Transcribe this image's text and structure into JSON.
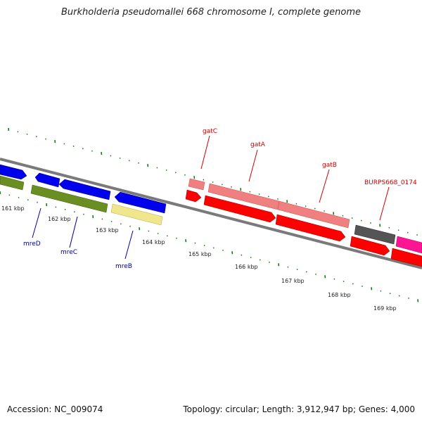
{
  "title": "Burkholderia pseudomallei 668 chromosome I, complete genome",
  "footer": {
    "accession": "Accession: NC_009074",
    "summary": "Topology: circular; Length: 3,912,947 bp; Genes: 4,000"
  },
  "colors": {
    "blue": "#0000ee",
    "olive": "#6b8e23",
    "khaki": "#f0e68c",
    "salmon": "#f08080",
    "red": "#ff0000",
    "gray": "#555555",
    "magenta": "#ff1493",
    "tick": "#1a7a1a",
    "backbone": "#7a7a7a",
    "label_red": "#cc0000",
    "label_blue": "#00008b"
  },
  "kbp_labels": [
    "161 kbp",
    "162 kbp",
    "163 kbp",
    "164 kbp",
    "165 kbp",
    "166 kbp",
    "167 kbp",
    "168 kbp",
    "169 kbp"
  ],
  "gene_labels": [
    {
      "text": "mreD",
      "color": "label_blue"
    },
    {
      "text": "mreC",
      "color": "label_blue"
    },
    {
      "text": "mreB",
      "color": "label_blue"
    },
    {
      "text": "gatC",
      "color": "label_red"
    },
    {
      "text": "gatA",
      "color": "label_red"
    },
    {
      "text": "gatB",
      "color": "label_red"
    },
    {
      "text": "BURPS668_0174",
      "color": "label_red"
    }
  ]
}
